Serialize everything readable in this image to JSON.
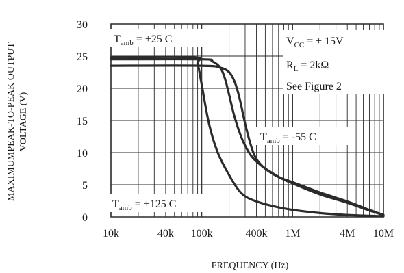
{
  "chart_data": {
    "type": "line",
    "x_scale": "log",
    "xlabel": "FREQUENCY (Hz)",
    "ylabel": [
      "MAXIMUMPEAK-TO-PEAK OUTPUT",
      "VOLTAGE (V)"
    ],
    "xlim": [
      10000,
      10000000
    ],
    "ylim": [
      0,
      30
    ],
    "grid": true,
    "x_ticks": [
      {
        "value": 10000,
        "label": "10k"
      },
      {
        "value": 40000,
        "label": "40k"
      },
      {
        "value": 100000,
        "label": "100k"
      },
      {
        "value": 400000,
        "label": "400k"
      },
      {
        "value": 1000000,
        "label": "1M"
      },
      {
        "value": 4000000,
        "label": "4M"
      },
      {
        "value": 10000000,
        "label": "10M"
      }
    ],
    "y_ticks": [
      0,
      5,
      10,
      15,
      20,
      25,
      30
    ],
    "series": [
      {
        "name": "Tamb = +25 C",
        "x": [
          10000,
          100000,
          130000,
          160000,
          180000,
          200000,
          230000,
          280000,
          350000,
          450000,
          600000,
          800000,
          1000000,
          2000000,
          4000000,
          7000000,
          10000000
        ],
        "y": [
          24.5,
          24.5,
          24.2,
          23.2,
          21.5,
          19.0,
          15.5,
          12.0,
          9.5,
          8.0,
          6.8,
          5.8,
          5.2,
          3.5,
          2.2,
          1.0,
          0.3
        ]
      },
      {
        "name": "Tamb = -55 C",
        "x": [
          10000,
          100000,
          160000,
          200000,
          230000,
          260000,
          300000,
          350000,
          400000,
          500000,
          700000,
          1000000,
          2000000,
          4000000,
          7000000,
          10000000
        ],
        "y": [
          23.5,
          23.5,
          23.2,
          22.5,
          21.0,
          18.5,
          14.5,
          11.0,
          9.0,
          7.5,
          6.2,
          5.4,
          3.8,
          2.4,
          1.1,
          0.3
        ]
      },
      {
        "name": "Tamb = +125 C",
        "x": [
          10000,
          80000,
          90000,
          100000,
          120000,
          150000,
          200000,
          250000,
          300000,
          400000,
          600000,
          1000000,
          2000000,
          4000000,
          10000000
        ],
        "y": [
          24.8,
          24.8,
          23.8,
          20.5,
          14.5,
          10.0,
          6.5,
          4.3,
          3.2,
          2.4,
          1.7,
          1.1,
          0.6,
          0.3,
          0.1
        ]
      }
    ],
    "annotations": {
      "t25": {
        "prefix": "T",
        "sub": "amb",
        "rest": " = +25  C"
      },
      "t55": {
        "prefix": "T",
        "sub": "amb",
        "rest": " = -55  C"
      },
      "t125": {
        "prefix": "T",
        "sub": "amb",
        "rest": " = +125  C"
      },
      "vcc": {
        "prefix": "V",
        "sub": "CC",
        "rest": " = ± 15V"
      },
      "rl": {
        "prefix": "R",
        "sub": "L",
        "rest": " = 2kΩ"
      },
      "fig": "See Figure 2"
    },
    "colors": {
      "line": "#2b2b2b",
      "grid": "#2b2b2b",
      "background": "#ffffff"
    }
  }
}
